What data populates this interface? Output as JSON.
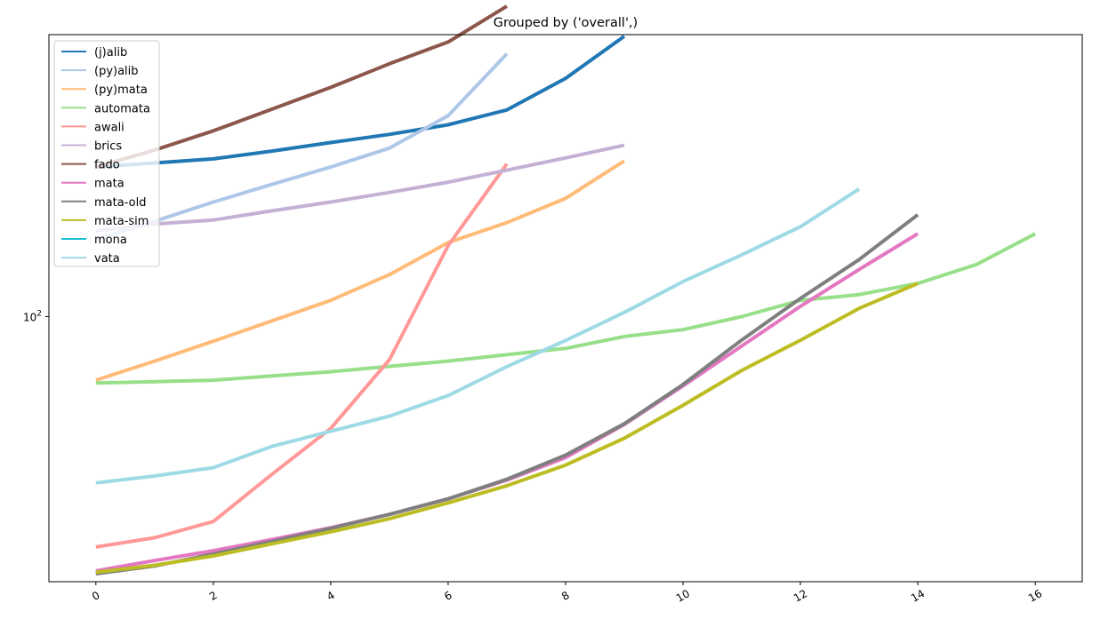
{
  "chart_data": {
    "type": "line",
    "title": "Grouped by ('overall',)",
    "xlabel": "",
    "ylabel": "",
    "xlim": [
      -0.8,
      16.8
    ],
    "y_scale": "log",
    "ylim": [
      28.5,
      380
    ],
    "x_ticks": [
      0,
      2,
      4,
      6,
      8,
      10,
      12,
      14,
      16
    ],
    "y_ticks": [
      {
        "value": 100,
        "base": "10",
        "exp": "2"
      }
    ],
    "grid": false,
    "legend_position": "top-left",
    "series": [
      {
        "name": "(j)alib",
        "color": "#1f77b4",
        "x": [
          0,
          1,
          2,
          3,
          4,
          5,
          6,
          7,
          8,
          9
        ],
        "values": [
          203,
          207,
          211,
          219,
          228,
          237,
          248,
          266,
          309,
          377
        ]
      },
      {
        "name": "(py)alib",
        "color": "#aec7e8",
        "x": [
          0,
          1,
          2,
          3,
          4,
          5,
          6,
          7
        ],
        "values": [
          144,
          157,
          172,
          187,
          203,
          222,
          259,
          347
        ]
      },
      {
        "name": "(py)mata",
        "color": "#ffbb78",
        "x": [
          0,
          1,
          2,
          3,
          4,
          5,
          6,
          7,
          8,
          9
        ],
        "values": [
          74,
          81,
          89,
          98,
          108,
          122,
          142,
          156,
          175,
          209
        ]
      },
      {
        "name": "automata",
        "color": "#98df8a",
        "x": [
          0,
          1,
          2,
          3,
          4,
          5,
          6,
          7,
          8,
          9,
          10,
          11,
          12,
          13,
          14,
          15,
          16
        ],
        "values": [
          73,
          73.5,
          74,
          75.5,
          77,
          79,
          81,
          83.5,
          86,
          91,
          94,
          100,
          108,
          111,
          117,
          128,
          148
        ]
      },
      {
        "name": "awali",
        "color": "#ff9896",
        "x": [
          0,
          1,
          2,
          3,
          4,
          5,
          6,
          7
        ],
        "values": [
          33.6,
          35.1,
          37.9,
          47.4,
          58.9,
          81.5,
          140,
          206
        ]
      },
      {
        "name": "brics",
        "color": "#c5b0d5",
        "x": [
          0,
          1,
          2,
          3,
          4,
          5,
          6,
          7,
          8,
          9
        ],
        "values": [
          150,
          155,
          158,
          165,
          172,
          180,
          189,
          200,
          212,
          225
        ]
      },
      {
        "name": "fado",
        "color": "#8c564b",
        "x": [
          0,
          1,
          2,
          3,
          4,
          5,
          6,
          7
        ],
        "values": [
          203,
          220,
          241,
          267,
          296,
          331,
          367,
          435
        ]
      },
      {
        "name": "mata",
        "color": "#e377c2",
        "x": [
          0,
          1,
          2,
          3,
          4,
          5,
          6,
          7,
          8,
          9,
          10,
          11,
          12,
          13,
          14
        ],
        "values": [
          30.0,
          31.5,
          33.0,
          34.8,
          36.8,
          39.2,
          42.2,
          46.1,
          51.3,
          60.0,
          72.0,
          87.0,
          105.0,
          125.0,
          148.0
        ]
      },
      {
        "name": "mata-old",
        "color": "#7f7f7f",
        "x": [
          0,
          1,
          2,
          3,
          4,
          5,
          6,
          7,
          8,
          9,
          10,
          11,
          12,
          13,
          14
        ],
        "values": [
          29.6,
          30.7,
          32.5,
          34.5,
          36.7,
          39.2,
          42.2,
          46.3,
          51.9,
          60.2,
          72.5,
          89.5,
          109.0,
          131.0,
          162.0
        ]
      },
      {
        "name": "mata-sim",
        "color": "#bcbd22",
        "x": [
          0,
          1,
          2,
          3,
          4,
          5,
          6,
          7,
          8,
          9,
          10,
          11,
          12,
          13,
          14
        ],
        "values": [
          29.8,
          30.8,
          32.2,
          34.1,
          36.1,
          38.4,
          41.4,
          44.9,
          49.5,
          56.2,
          65.7,
          77.5,
          89.4,
          104.0,
          117.0
        ]
      },
      {
        "name": "mona",
        "color": "#17becf",
        "x": [],
        "values": []
      },
      {
        "name": "vata",
        "color": "#9edae5",
        "x": [
          0,
          1,
          2,
          3,
          4,
          5,
          6,
          7,
          8,
          9,
          10,
          11,
          12,
          13
        ],
        "values": [
          45.5,
          47,
          48.9,
          54.1,
          58.1,
          62.4,
          68.8,
          78.9,
          89.3,
          102,
          118,
          134,
          153,
          183
        ]
      }
    ]
  }
}
